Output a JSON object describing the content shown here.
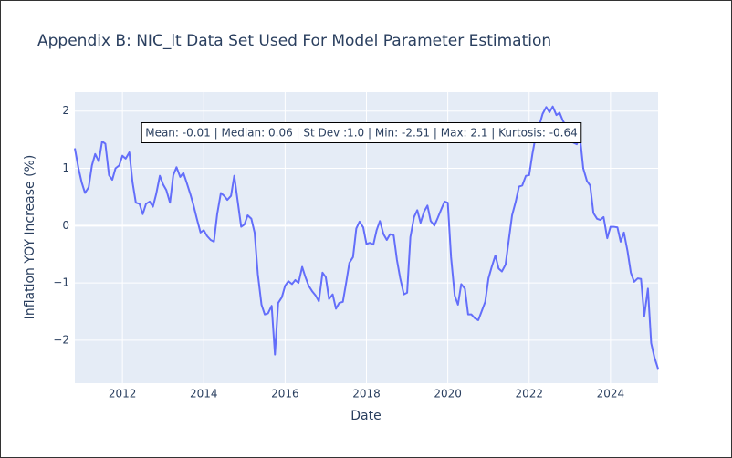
{
  "chart_data": {
    "type": "line",
    "title": "Appendix B: NIC_lt Data Set Used For Model Parameter Estimation",
    "x_label": "Date",
    "y_label": "Inflation YOY Increase (%)",
    "annotation": "Mean: -0.01 | Median: 0.06 | St Dev :1.0 | Min: -2.51 | Max: 2.1 | Kurtosis: -0.64",
    "x": [
      2010.83,
      2010.92,
      2011,
      2011.08,
      2011.17,
      2011.25,
      2011.33,
      2011.42,
      2011.5,
      2011.58,
      2011.67,
      2011.75,
      2011.83,
      2011.92,
      2012,
      2012.08,
      2012.17,
      2012.25,
      2012.33,
      2012.42,
      2012.5,
      2012.58,
      2012.67,
      2012.75,
      2012.83,
      2012.92,
      2013,
      2013.08,
      2013.17,
      2013.25,
      2013.33,
      2013.42,
      2013.5,
      2013.58,
      2013.67,
      2013.75,
      2013.83,
      2013.92,
      2014,
      2014.08,
      2014.17,
      2014.25,
      2014.33,
      2014.42,
      2014.5,
      2014.58,
      2014.67,
      2014.75,
      2014.83,
      2014.92,
      2015,
      2015.08,
      2015.17,
      2015.25,
      2015.33,
      2015.42,
      2015.5,
      2015.58,
      2015.67,
      2015.75,
      2015.83,
      2015.92,
      2016,
      2016.08,
      2016.17,
      2016.25,
      2016.33,
      2016.42,
      2016.5,
      2016.58,
      2016.67,
      2016.75,
      2016.83,
      2016.92,
      2017,
      2017.08,
      2017.17,
      2017.25,
      2017.33,
      2017.42,
      2017.5,
      2017.58,
      2017.67,
      2017.75,
      2017.83,
      2017.92,
      2018,
      2018.08,
      2018.17,
      2018.25,
      2018.33,
      2018.42,
      2018.5,
      2018.58,
      2018.67,
      2018.75,
      2018.83,
      2018.92,
      2019,
      2019.08,
      2019.17,
      2019.25,
      2019.33,
      2019.42,
      2019.5,
      2019.58,
      2019.67,
      2019.75,
      2019.83,
      2019.92,
      2020,
      2020.08,
      2020.17,
      2020.25,
      2020.33,
      2020.42,
      2020.5,
      2020.58,
      2020.67,
      2020.75,
      2020.83,
      2020.92,
      2021,
      2021.08,
      2021.17,
      2021.25,
      2021.33,
      2021.42,
      2021.5,
      2021.58,
      2021.67,
      2021.75,
      2021.83,
      2021.92,
      2022,
      2022.08,
      2022.17,
      2022.25,
      2022.33,
      2022.42,
      2022.5,
      2022.58,
      2022.67,
      2022.75,
      2022.83,
      2022.92,
      2023,
      2023.08,
      2023.17,
      2023.25,
      2023.33,
      2023.42,
      2023.5,
      2023.58,
      2023.67,
      2023.75,
      2023.83,
      2023.92,
      2024,
      2024.08,
      2024.17,
      2024.25,
      2024.33,
      2024.42,
      2024.5,
      2024.58,
      2024.67,
      2024.75,
      2024.83,
      2024.92,
      2025,
      2025.08,
      2025.17
    ],
    "series": [
      {
        "name": "NIC_lt",
        "color": "#636efa",
        "values": [
          1.35,
          1.0,
          0.75,
          0.57,
          0.67,
          1.05,
          1.25,
          1.12,
          1.47,
          1.43,
          0.88,
          0.8,
          1.0,
          1.05,
          1.22,
          1.17,
          1.28,
          0.75,
          0.4,
          0.38,
          0.2,
          0.38,
          0.42,
          0.33,
          0.55,
          0.87,
          0.72,
          0.62,
          0.4,
          0.88,
          1.02,
          0.85,
          0.92,
          0.75,
          0.55,
          0.35,
          0.12,
          -0.12,
          -0.08,
          -0.18,
          -0.25,
          -0.28,
          0.2,
          0.57,
          0.52,
          0.45,
          0.52,
          0.87,
          0.45,
          -0.02,
          0.02,
          0.18,
          0.12,
          -0.12,
          -0.85,
          -1.38,
          -1.55,
          -1.53,
          -1.4,
          -2.25,
          -1.35,
          -1.25,
          -1.05,
          -0.97,
          -1.02,
          -0.95,
          -1.0,
          -0.72,
          -0.9,
          -1.05,
          -1.15,
          -1.22,
          -1.32,
          -0.82,
          -0.9,
          -1.28,
          -1.2,
          -1.45,
          -1.35,
          -1.33,
          -1.0,
          -0.65,
          -0.55,
          -0.05,
          0.07,
          -0.03,
          -0.32,
          -0.3,
          -0.33,
          -0.08,
          0.08,
          -0.15,
          -0.25,
          -0.15,
          -0.17,
          -0.6,
          -0.92,
          -1.2,
          -1.17,
          -0.2,
          0.15,
          0.27,
          0.05,
          0.25,
          0.35,
          0.08,
          0.0,
          0.13,
          0.27,
          0.42,
          0.4,
          -0.55,
          -1.22,
          -1.38,
          -1.02,
          -1.1,
          -1.55,
          -1.55,
          -1.62,
          -1.65,
          -1.5,
          -1.33,
          -0.92,
          -0.72,
          -0.52,
          -0.75,
          -0.8,
          -0.68,
          -0.25,
          0.18,
          0.42,
          0.68,
          0.7,
          0.87,
          0.88,
          1.25,
          1.6,
          1.75,
          1.95,
          2.07,
          1.98,
          2.08,
          1.93,
          1.97,
          1.83,
          1.72,
          1.55,
          1.45,
          1.42,
          1.55,
          1.0,
          0.78,
          0.7,
          0.22,
          0.12,
          0.1,
          0.15,
          -0.22,
          -0.02,
          -0.02,
          -0.03,
          -0.28,
          -0.12,
          -0.45,
          -0.82,
          -0.98,
          -0.92,
          -0.93,
          -1.58,
          -1.1,
          -2.05,
          -2.3,
          -2.5
        ]
      }
    ],
    "xlim": [
      2010.83,
      2025.17
    ],
    "xticks": [
      2012,
      2014,
      2016,
      2018,
      2020,
      2022,
      2024
    ],
    "ylim": [
      -2.75,
      2.33
    ],
    "yticks": [
      {
        "value": -2,
        "label": "−2"
      },
      {
        "value": -1,
        "label": "−1"
      },
      0,
      1,
      2
    ],
    "grid": true
  }
}
